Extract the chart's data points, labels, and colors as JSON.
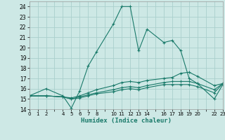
{
  "xlabel": "Humidex (Indice chaleur)",
  "xlim": [
    0,
    23
  ],
  "ylim": [
    14,
    24.5
  ],
  "yticks": [
    14,
    15,
    16,
    17,
    18,
    19,
    20,
    21,
    22,
    23,
    24
  ],
  "xticks_all": [
    0,
    1,
    2,
    3,
    4,
    5,
    6,
    7,
    8,
    9,
    10,
    11,
    12,
    13,
    14,
    15,
    16,
    17,
    18,
    19,
    20,
    21,
    22,
    23
  ],
  "xtick_labels": [
    "0",
    "1",
    "2",
    "",
    "4",
    "5",
    "6",
    "7",
    "8",
    "",
    "10",
    "11",
    "12",
    "13",
    "14",
    "",
    "16",
    "17",
    "18",
    "19",
    "20",
    "",
    "22",
    "23"
  ],
  "background_color": "#cde8e5",
  "grid_color": "#aacfcc",
  "line_color": "#1a7a6a",
  "lines": [
    {
      "x": [
        0,
        2,
        4,
        5,
        6,
        7,
        8,
        10,
        11,
        12,
        13,
        14,
        16,
        17,
        18,
        19,
        20,
        22,
        23
      ],
      "y": [
        15.3,
        16.0,
        15.3,
        14.1,
        15.8,
        18.2,
        19.6,
        22.3,
        24.0,
        24.0,
        19.7,
        21.8,
        20.5,
        20.7,
        19.7,
        17.0,
        16.5,
        15.0,
        16.4
      ]
    },
    {
      "x": [
        0,
        2,
        4,
        5,
        6,
        7,
        8,
        10,
        11,
        12,
        13,
        14,
        16,
        17,
        18,
        19,
        20,
        22,
        23
      ],
      "y": [
        15.3,
        15.3,
        15.2,
        15.1,
        15.3,
        15.6,
        15.9,
        16.3,
        16.6,
        16.7,
        16.6,
        16.8,
        17.0,
        17.1,
        17.5,
        17.6,
        17.2,
        16.3,
        16.5
      ]
    },
    {
      "x": [
        0,
        2,
        4,
        5,
        6,
        7,
        8,
        10,
        11,
        12,
        13,
        14,
        16,
        17,
        18,
        19,
        20,
        22,
        23
      ],
      "y": [
        15.3,
        15.3,
        15.2,
        15.0,
        15.2,
        15.4,
        15.6,
        15.9,
        16.1,
        16.2,
        16.1,
        16.3,
        16.6,
        16.7,
        16.7,
        16.7,
        16.5,
        15.9,
        16.5
      ]
    },
    {
      "x": [
        0,
        2,
        4,
        5,
        6,
        7,
        8,
        10,
        11,
        12,
        13,
        14,
        16,
        17,
        18,
        19,
        20,
        22,
        23
      ],
      "y": [
        15.3,
        15.3,
        15.2,
        15.0,
        15.1,
        15.3,
        15.5,
        15.7,
        15.9,
        16.0,
        15.9,
        16.1,
        16.4,
        16.4,
        16.4,
        16.4,
        16.2,
        15.6,
        16.5
      ]
    }
  ]
}
